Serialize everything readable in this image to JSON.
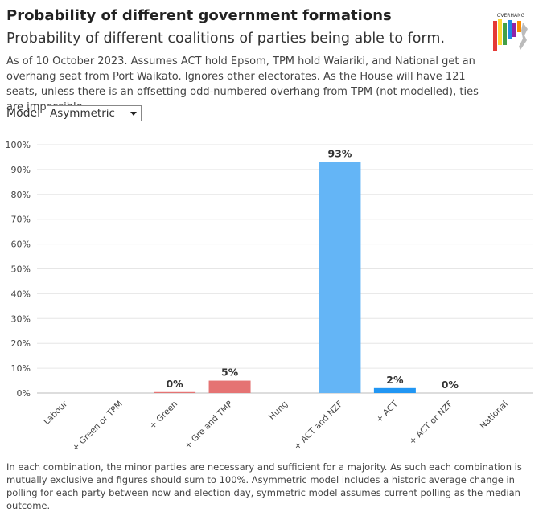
{
  "title": "Probability of different government formations",
  "subtitle": "Probability of different coalitions of parties being able to form.",
  "description": "As of 10 October 2023. Assumes ACT hold Epsom, TPM hold Waiariki, and National get an overhang seat from Port Waikato. Ignores other electorates. As the House will have 121 seats, unless there is an offsetting odd-numbered overhang from TPM (not modelled), ties are impossible.",
  "model_label": "Model",
  "model_value": "Asymmetric",
  "logo_text": "OVERHANG",
  "footnote": "In each combination, the minor parties are necessary and sufficient for a majority. As such each combination is mutually exclusive and figures should sum to 100%. Asymmetric model includes a historic average change in polling for each party between now and election day, symmetric model assumes current polling as the median outcome.",
  "chart_data": {
    "type": "bar",
    "categories": [
      "Labour",
      "+ Green or TPM",
      "+ Green",
      "+ Gre and TMP",
      "Hung",
      "+ ACT and NZF",
      "+ ACT",
      "+ ACT or NZF",
      "National"
    ],
    "values": [
      null,
      null,
      0.4,
      5,
      null,
      93,
      2,
      0,
      null
    ],
    "value_labels": [
      null,
      null,
      "0%",
      "5%",
      null,
      "93%",
      "2%",
      "0%",
      null
    ],
    "colors": [
      "#e57373",
      "#e57373",
      "#e57373",
      "#e57373",
      "#9e9e9e",
      "#64b5f6",
      "#2196f3",
      "#2196f3",
      "#2196f3"
    ],
    "ylim": [
      0,
      100
    ],
    "yticks": [
      {
        "value": 0,
        "label": "0%"
      },
      {
        "value": 10,
        "label": "10%"
      },
      {
        "value": 20,
        "label": "20%"
      },
      {
        "value": 30,
        "label": "30%"
      },
      {
        "value": 40,
        "label": "40%"
      },
      {
        "value": 50,
        "label": "50%"
      },
      {
        "value": 60,
        "label": "60%"
      },
      {
        "value": 70,
        "label": "70%"
      },
      {
        "value": 80,
        "label": "80%"
      },
      {
        "value": 90,
        "label": "90%"
      },
      {
        "value": 100,
        "label": "100%"
      }
    ],
    "grid": true
  }
}
